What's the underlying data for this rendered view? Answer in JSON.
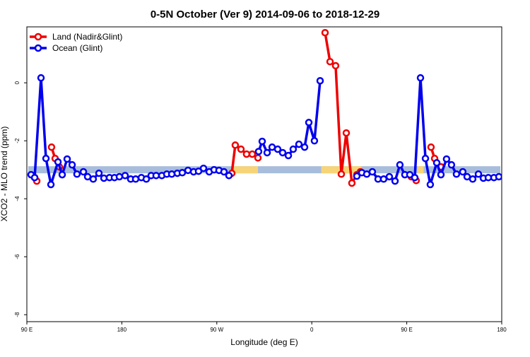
{
  "chart_data": {
    "type": "line",
    "title": "0-5N October (Ver 9)   2014-09-06 to 2018-12-29",
    "xlabel": "Longitude (deg E)",
    "ylabel": "XCO2 - MLO trend (ppm)",
    "xlim": [
      90,
      540
    ],
    "ylim": [
      -8.24,
      1.93
    ],
    "xticks": [
      {
        "value": 90,
        "label": "90 E"
      },
      180,
      {
        "value": 270,
        "label": "90 W"
      },
      {
        "value": 360,
        "label": "0"
      },
      {
        "value": 450,
        "label": "90 E"
      },
      {
        "value": 540,
        "label": "180"
      }
    ],
    "yticks": [
      0,
      -2,
      -4,
      -6,
      -8
    ],
    "legend": "top-left",
    "surface_band": {
      "y": -3.0,
      "ocean_color": "#a7bddb",
      "land_color": "#f8d478",
      "land": [
        [
          286,
          309
        ],
        [
          369,
          407
        ],
        [
          460,
          466
        ]
      ]
    },
    "series": [
      {
        "name": "Land (Nadir&Glint)",
        "color": "#ee0000",
        "x": [
          97.4,
          99.4,
          null,
          113.4,
          116.8,
          120.8,
          null,
          284.2,
          287.5,
          292.9,
          298.2,
          303.6,
          309.0,
          null,
          372.6,
          377.3,
          382.6,
          388.0,
          392.7,
          398.0,
          402.7,
          406.1,
          null,
          454.3,
          458.9,
          null,
          473.0,
          476.4,
          482.4
        ],
        "values": [
          -3.27,
          -3.39,
          null,
          -2.22,
          -2.61,
          -2.9,
          null,
          -3.12,
          -2.15,
          -2.29,
          -2.46,
          -2.46,
          -2.59,
          null,
          1.73,
          0.73,
          0.59,
          -3.15,
          -1.73,
          -3.46,
          -3.17,
          -3.07,
          null,
          -3.24,
          -3.37,
          null,
          -2.22,
          -2.61,
          -2.9
        ]
      },
      {
        "name": "Ocean (Glint)",
        "color": "#0000ee",
        "x": [
          94.0,
          97.4,
          103.4,
          108.1,
          112.8,
          119.5,
          123.5,
          128.2,
          132.9,
          137.5,
          143.6,
          147.6,
          152.9,
          158.3,
          163.0,
          168.3,
          173.0,
          177.7,
          183.1,
          188.4,
          193.1,
          198.5,
          203.2,
          207.8,
          212.5,
          217.9,
          222.6,
          227.3,
          232.6,
          237.3,
          242.7,
          248.0,
          252.7,
          257.4,
          262.8,
          267.4,
          272.1,
          276.8,
          281.5,
          null,
          309.6,
          313.0,
          317.7,
          322.4,
          327.7,
          332.4,
          337.8,
          342.4,
          347.8,
          353.2,
          357.2,
          362.5,
          367.9,
          null,
          402.7,
          407.4,
          412.1,
          417.4,
          422.8,
          428.1,
          433.5,
          438.9,
          443.5,
          448.2,
          452.9,
          457.6,
          463.0,
          467.7,
          472.3,
          478.4,
          482.4,
          487.7,
          492.4,
          497.1,
          503.1,
          507.2,
          512.5,
          517.9,
          522.6,
          527.3,
          532.6,
          537.3
        ],
        "values": [
          -3.17,
          -3.27,
          0.17,
          -2.61,
          -3.51,
          -2.73,
          -3.17,
          -2.63,
          -2.83,
          -3.15,
          -3.07,
          -3.24,
          -3.32,
          -3.12,
          -3.29,
          -3.27,
          -3.27,
          -3.24,
          -3.2,
          -3.32,
          -3.32,
          -3.27,
          -3.32,
          -3.2,
          -3.2,
          -3.2,
          -3.15,
          -3.15,
          -3.12,
          -3.1,
          -3.02,
          -3.07,
          -3.05,
          -2.95,
          -3.07,
          -3.0,
          -3.02,
          -3.07,
          -3.2,
          null,
          -2.37,
          -2.02,
          -2.41,
          -2.22,
          -2.29,
          -2.41,
          -2.51,
          -2.29,
          -2.12,
          -2.22,
          -1.37,
          -2.0,
          0.07,
          null,
          -3.22,
          -3.1,
          -3.15,
          -3.07,
          -3.32,
          -3.32,
          -3.24,
          -3.39,
          -2.83,
          -3.17,
          -3.17,
          -3.27,
          0.17,
          -2.61,
          -3.51,
          -2.76,
          -3.17,
          -2.63,
          -2.83,
          -3.15,
          -3.07,
          -3.24,
          -3.32,
          -3.15,
          -3.29,
          -3.27,
          -3.27,
          -3.24
        ]
      }
    ]
  }
}
